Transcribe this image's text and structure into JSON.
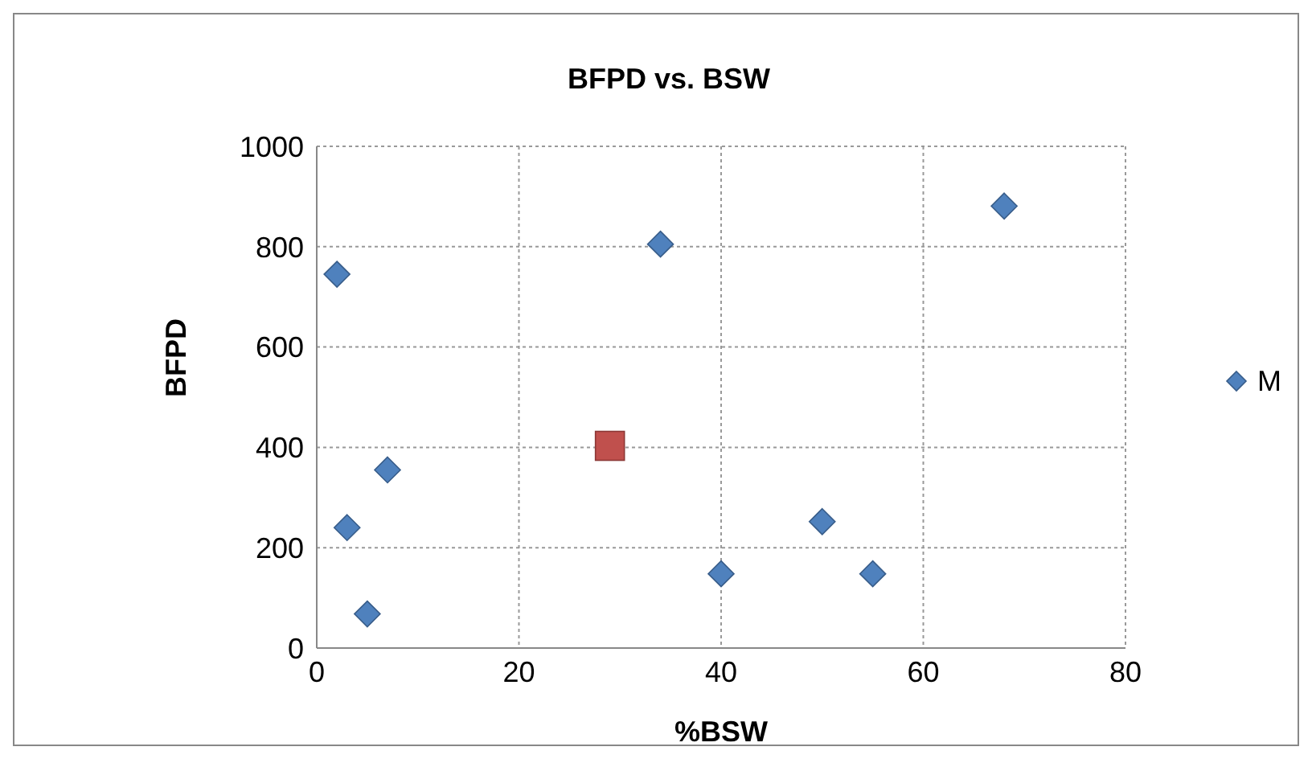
{
  "chart_data": {
    "type": "scatter",
    "title": "BFPD vs. BSW",
    "xlabel": "%BSW",
    "ylabel": "BFPD",
    "series": [
      {
        "name": "M",
        "color": "#4f81bd",
        "marker": "diamond",
        "x": [
          2,
          3,
          5,
          7,
          34,
          40,
          50,
          55,
          68
        ],
        "values": [
          745,
          240,
          68,
          355,
          805,
          148,
          252,
          148,
          881
        ]
      },
      {
        "color": "#c0504d",
        "marker": "square",
        "x": [
          29
        ],
        "values": [
          403
        ]
      }
    ],
    "xlim": [
      0,
      80
    ],
    "xticks": [
      0,
      20,
      40,
      60,
      80
    ],
    "ylim": [
      0,
      1000
    ],
    "yticks": [
      0,
      200,
      400,
      600,
      800,
      1000
    ],
    "grid": true,
    "legend": "right"
  }
}
